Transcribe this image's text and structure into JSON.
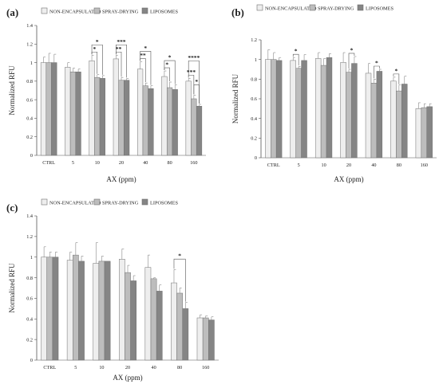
{
  "colors": {
    "series": [
      "#eeeeee",
      "#bdbdbd",
      "#858585"
    ],
    "stroke": "#707070",
    "axis": "#555555",
    "error": "#888888",
    "sig": "#555555"
  },
  "chart_data": [
    {
      "type": "bar",
      "panel_label": "(a)",
      "categories": [
        "CTRL",
        "5",
        "10",
        "20",
        "40",
        "80",
        "160"
      ],
      "xlabel": "AX (ppm)",
      "ylabel": "Normalized RFU",
      "ylim": [
        0,
        1.4
      ],
      "yticks": [
        "0",
        "0.2",
        "0.4",
        "0.6",
        "0.8",
        "1",
        "1.2",
        "1.4"
      ],
      "grid": false,
      "legend_position": "top",
      "series": [
        {
          "name": "NON-ENCAPSULATED",
          "values": [
            1.0,
            0.95,
            1.02,
            1.04,
            0.93,
            0.85,
            0.8
          ],
          "errors": [
            0.06,
            0.05,
            0.06,
            0.04,
            0.08,
            0.06,
            0.03
          ]
        },
        {
          "name": "SPRAY-DRYING",
          "values": [
            1.0,
            0.9,
            0.84,
            0.81,
            0.75,
            0.73,
            0.61
          ],
          "errors": [
            0.1,
            0.04,
            0.03,
            0.03,
            0.03,
            0.06,
            0.04
          ]
        },
        {
          "name": "LIPOSOMES",
          "values": [
            1.0,
            0.9,
            0.83,
            0.81,
            0.72,
            0.71,
            0.53
          ],
          "errors": [
            0.09,
            0.03,
            0.03,
            0.02,
            0.03,
            0.05,
            0.02
          ]
        }
      ],
      "significance": [
        {
          "category": 2,
          "from": 0,
          "to": 2,
          "label": "*",
          "level": 2
        },
        {
          "category": 2,
          "from": 0,
          "to": 1,
          "label": "*",
          "level": 1
        },
        {
          "category": 3,
          "from": 0,
          "to": 2,
          "label": "***",
          "level": 2
        },
        {
          "category": 3,
          "from": 0,
          "to": 1,
          "label": "**",
          "level": 1
        },
        {
          "category": 4,
          "from": 0,
          "to": 2,
          "label": "*",
          "level": 2
        },
        {
          "category": 4,
          "from": 0,
          "to": 1,
          "label": "**",
          "level": 1
        },
        {
          "category": 5,
          "from": 0,
          "to": 2,
          "label": "*",
          "level": 2
        },
        {
          "category": 5,
          "from": 0,
          "to": 1,
          "label": "*",
          "level": 1
        },
        {
          "category": 6,
          "from": 0,
          "to": 2,
          "label": "****",
          "level": 3
        },
        {
          "category": 6,
          "from": 1,
          "to": 2,
          "label": "*",
          "level": 2
        },
        {
          "category": 6,
          "from": 0,
          "to": 1,
          "label": "***",
          "level": 1
        }
      ]
    },
    {
      "type": "bar",
      "panel_label": "(b)",
      "categories": [
        "CTRL",
        "5",
        "10",
        "20",
        "40",
        "80",
        "160"
      ],
      "xlabel": "AX (ppm)",
      "ylabel": "Normalized RFU",
      "ylim": [
        0,
        1.2
      ],
      "yticks": [
        "0",
        "0.2",
        "0.4",
        "0.6",
        "0.8",
        "1",
        "1.2"
      ],
      "grid": false,
      "legend_position": "top",
      "series": [
        {
          "name": "NON-ENCAPSULATED",
          "values": [
            1.0,
            0.99,
            1.01,
            0.97,
            0.86,
            0.78,
            0.5
          ],
          "errors": [
            0.1,
            0.03,
            0.06,
            0.1,
            0.1,
            0.04,
            0.06
          ]
        },
        {
          "name": "SPRAY-DRYING",
          "values": [
            1.0,
            0.91,
            0.94,
            0.87,
            0.76,
            0.68,
            0.51
          ],
          "errors": [
            0.07,
            0.02,
            0.07,
            0.03,
            0.04,
            0.06,
            0.04
          ]
        },
        {
          "name": "LIPOSOMES",
          "values": [
            0.99,
            0.99,
            1.02,
            0.96,
            0.88,
            0.75,
            0.52
          ],
          "errors": [
            0.03,
            0.06,
            0.04,
            0.07,
            0.02,
            0.08,
            0.03
          ]
        }
      ],
      "significance": [
        {
          "category": 1,
          "from": 0,
          "to": 1,
          "label": "*",
          "level": 1
        },
        {
          "category": 3,
          "from": 1,
          "to": 2,
          "label": "*",
          "level": 1
        },
        {
          "category": 4,
          "from": 1,
          "to": 2,
          "label": "*",
          "level": 1
        },
        {
          "category": 5,
          "from": 0,
          "to": 1,
          "label": "*",
          "level": 1
        }
      ]
    },
    {
      "type": "bar",
      "panel_label": "(c)",
      "categories": [
        "CTRL",
        "5",
        "10",
        "20",
        "40",
        "80",
        "160"
      ],
      "xlabel": "AX (ppm)",
      "ylabel": "Normalized RFU",
      "ylim": [
        0,
        1.4
      ],
      "yticks": [
        "0",
        "0.2",
        "0.4",
        "0.6",
        "0.8",
        "1",
        "1.2",
        "1.4"
      ],
      "grid": false,
      "legend_position": "top",
      "series": [
        {
          "name": "NON-ENCAPSULATED",
          "values": [
            1.0,
            0.97,
            0.94,
            0.98,
            0.9,
            0.75,
            0.41
          ],
          "errors": [
            0.1,
            0.08,
            0.2,
            0.1,
            0.12,
            0.13,
            0.03
          ]
        },
        {
          "name": "SPRAY-DRYING",
          "values": [
            1.0,
            1.02,
            0.96,
            0.85,
            0.79,
            0.65,
            0.41
          ],
          "errors": [
            0.05,
            0.12,
            0.05,
            0.07,
            0.01,
            0.05,
            0.02
          ]
        },
        {
          "name": "LIPOSOMES",
          "values": [
            1.0,
            0.96,
            0.96,
            0.77,
            0.67,
            0.5,
            0.39
          ],
          "errors": [
            0.05,
            0.05,
            0.0,
            0.05,
            0.06,
            0.06,
            0.03
          ]
        }
      ],
      "significance": [
        {
          "category": 5,
          "from": 0,
          "to": 2,
          "label": "*",
          "level": 2
        }
      ]
    }
  ]
}
